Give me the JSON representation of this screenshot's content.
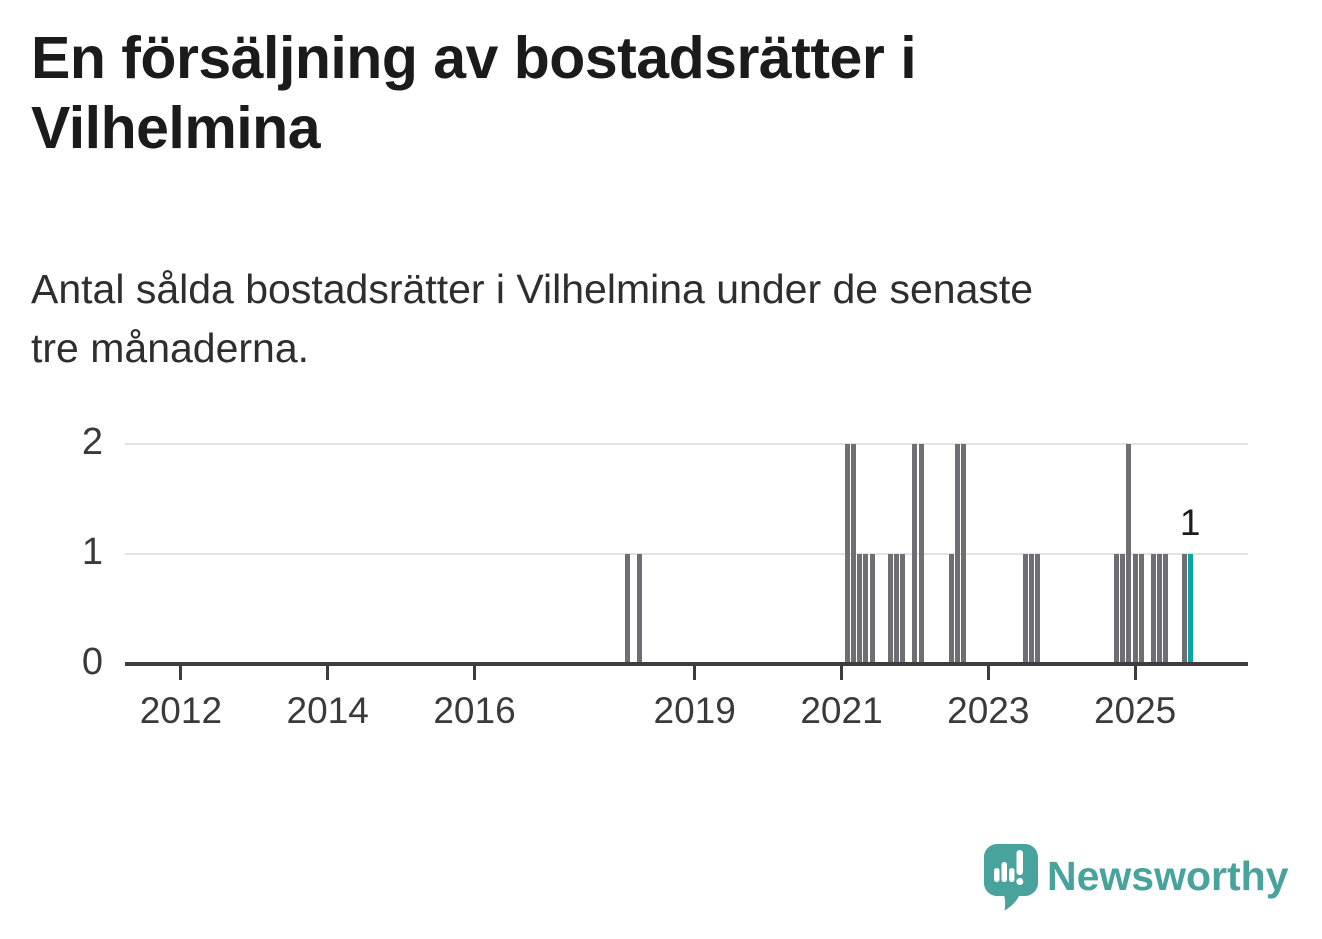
{
  "chart_data": {
    "type": "bar",
    "title": "En försäljning av bostadsrätter i Vilhelmina",
    "title_lines": [
      "En försäljning av bostadsrätter i",
      "Vilhelmina"
    ],
    "subtitle": "Antal sålda bostadsrätter i Vilhelmina under de senaste tre månaderna.",
    "subtitle_lines": [
      "Antal sålda bostadsrätter i Vilhelmina under de senaste",
      "tre månaderna."
    ],
    "xlabel": "",
    "ylabel": "",
    "ylim": [
      0,
      2
    ],
    "yticks": [
      0,
      1,
      2
    ],
    "xticks": [
      2012,
      2014,
      2016,
      2019,
      2021,
      2023,
      2025
    ],
    "x_unit": "month",
    "x_domain": [
      "2011-04",
      "2026-06"
    ],
    "grid": true,
    "legend": false,
    "highlight_label": "1",
    "points": [
      {
        "month": "2018-02",
        "value": 1
      },
      {
        "month": "2018-04",
        "value": 1
      },
      {
        "month": "2021-02",
        "value": 2
      },
      {
        "month": "2021-03",
        "value": 2
      },
      {
        "month": "2021-04",
        "value": 1
      },
      {
        "month": "2021-05",
        "value": 1
      },
      {
        "month": "2021-06",
        "value": 1
      },
      {
        "month": "2021-09",
        "value": 1
      },
      {
        "month": "2021-10",
        "value": 1
      },
      {
        "month": "2021-11",
        "value": 1
      },
      {
        "month": "2022-01",
        "value": 2
      },
      {
        "month": "2022-02",
        "value": 2
      },
      {
        "month": "2022-07",
        "value": 1
      },
      {
        "month": "2022-08",
        "value": 2
      },
      {
        "month": "2022-09",
        "value": 2
      },
      {
        "month": "2023-07",
        "value": 1
      },
      {
        "month": "2023-08",
        "value": 1
      },
      {
        "month": "2023-09",
        "value": 1
      },
      {
        "month": "2024-10",
        "value": 1
      },
      {
        "month": "2024-11",
        "value": 1
      },
      {
        "month": "2024-12",
        "value": 2
      },
      {
        "month": "2025-01",
        "value": 1
      },
      {
        "month": "2025-02",
        "value": 1
      },
      {
        "month": "2025-04",
        "value": 1
      },
      {
        "month": "2025-05",
        "value": 1
      },
      {
        "month": "2025-06",
        "value": 1
      },
      {
        "month": "2025-09",
        "value": 1
      },
      {
        "month": "2025-10",
        "value": 1,
        "highlight": true
      }
    ]
  },
  "footer": {
    "brand_name": "Newsworthy"
  },
  "colors": {
    "bar": "#6e6e74",
    "highlight_bar": "#0ba5a1",
    "axis": "#3d3d3d",
    "gridline": "#e3e3e3",
    "title_text": "#1b1b1b",
    "subtitle_text": "#2e2e2e",
    "tick_text": "#3a3a3a",
    "brand": "#47a39b",
    "background": "#ffffff"
  }
}
